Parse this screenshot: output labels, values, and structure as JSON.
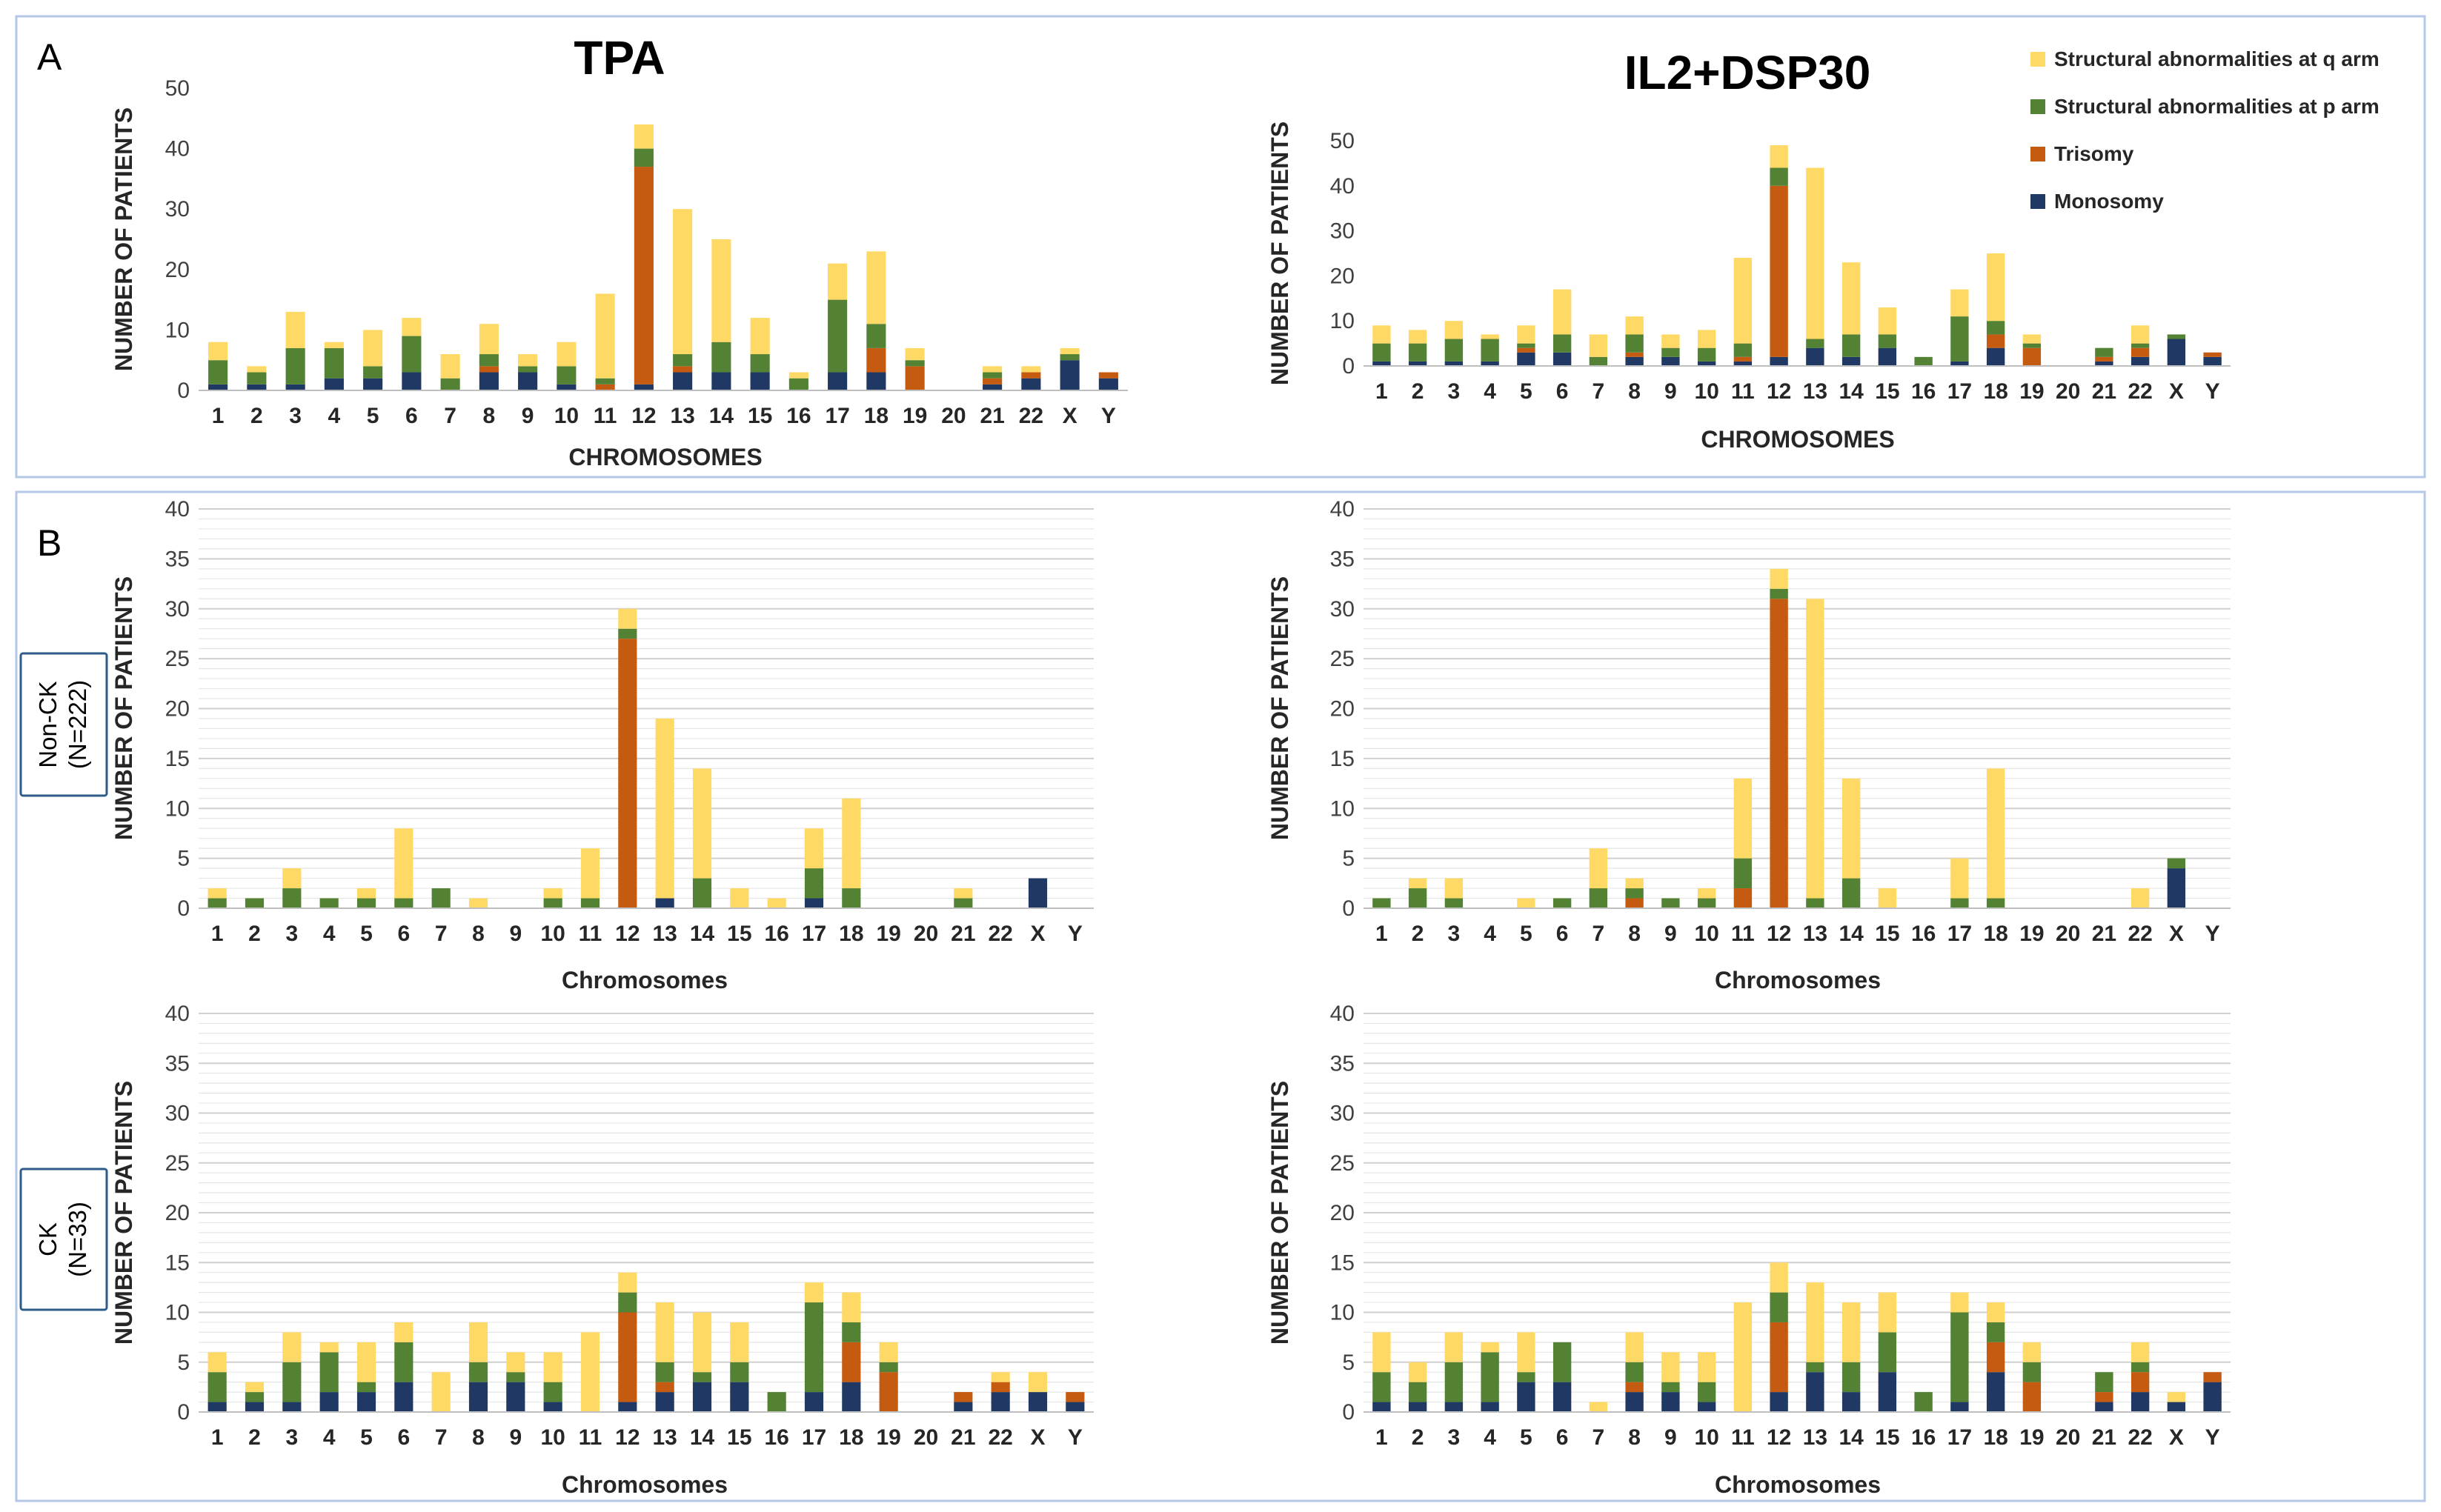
{
  "panels": {
    "a_label": "A",
    "b_label": "B"
  },
  "colors": {
    "monosomy": "#1F3864",
    "trisomy": "#C55A11",
    "p_arm": "#548235",
    "q_arm": "#FFD966",
    "panel_border": "#B4C7E7",
    "row_box_border": "#2E5C8A",
    "gridline": "#D9D9D9",
    "axis": "#BFBFBF"
  },
  "row_labels": {
    "non_ck": [
      "Non-CK",
      "(N=222)"
    ],
    "ck": [
      "CK",
      "(N=33)"
    ]
  },
  "chart_data": [
    {
      "id": "A_TPA",
      "type": "bar",
      "stacked": true,
      "title": "TPA",
      "xlabel": "CHROMOSOMES",
      "ylabel": "NUMBER OF PATIENTS",
      "ylim": [
        0,
        50
      ],
      "ytick_step": 10,
      "grid": false,
      "categories": [
        "1",
        "2",
        "3",
        "4",
        "5",
        "6",
        "7",
        "8",
        "9",
        "10",
        "11",
        "12",
        "13",
        "14",
        "15",
        "16",
        "17",
        "18",
        "19",
        "20",
        "21",
        "22",
        "X",
        "Y"
      ],
      "series": [
        {
          "name": "Monosomy",
          "color_key": "monosomy",
          "values": [
            1,
            1,
            1,
            2,
            2,
            3,
            0,
            3,
            3,
            1,
            0,
            1,
            3,
            3,
            3,
            0,
            3,
            3,
            0,
            0,
            1,
            2,
            5,
            2
          ]
        },
        {
          "name": "Trisomy",
          "color_key": "trisomy",
          "values": [
            0,
            0,
            0,
            0,
            0,
            0,
            0,
            1,
            0,
            0,
            1,
            36,
            1,
            0,
            0,
            0,
            0,
            4,
            4,
            0,
            1,
            1,
            0,
            1
          ]
        },
        {
          "name": "Structural abnormalities at p arm",
          "color_key": "p_arm",
          "values": [
            4,
            2,
            6,
            5,
            2,
            6,
            2,
            2,
            1,
            3,
            1,
            3,
            2,
            5,
            3,
            2,
            12,
            4,
            1,
            0,
            1,
            0,
            1,
            0
          ]
        },
        {
          "name": "Structural abnormalities at q arm",
          "color_key": "q_arm",
          "values": [
            3,
            1,
            6,
            1,
            6,
            3,
            4,
            5,
            2,
            4,
            14,
            4,
            24,
            17,
            6,
            1,
            6,
            12,
            2,
            0,
            1,
            1,
            1,
            0
          ]
        }
      ]
    },
    {
      "id": "A_IL2",
      "type": "bar",
      "stacked": true,
      "title": "IL2+DSP30",
      "xlabel": "CHROMOSOMES",
      "ylabel": "NUMBER OF PATIENTS",
      "ylim": [
        0,
        50
      ],
      "ytick_step": 10,
      "grid": false,
      "legend": "top-right",
      "legend_order": [
        "Structural abnormalities at q arm",
        "Structural abnormalities at p arm",
        "Trisomy",
        "Monosomy"
      ],
      "categories": [
        "1",
        "2",
        "3",
        "4",
        "5",
        "6",
        "7",
        "8",
        "9",
        "10",
        "11",
        "12",
        "13",
        "14",
        "15",
        "16",
        "17",
        "18",
        "19",
        "20",
        "21",
        "22",
        "X",
        "Y"
      ],
      "series": [
        {
          "name": "Monosomy",
          "color_key": "monosomy",
          "values": [
            1,
            1,
            1,
            1,
            3,
            3,
            0,
            2,
            2,
            1,
            1,
            2,
            4,
            2,
            4,
            0,
            1,
            4,
            0,
            0,
            1,
            2,
            6,
            2
          ]
        },
        {
          "name": "Trisomy",
          "color_key": "trisomy",
          "values": [
            0,
            0,
            0,
            0,
            1,
            0,
            0,
            1,
            0,
            0,
            1,
            38,
            0,
            0,
            0,
            0,
            0,
            3,
            4,
            0,
            1,
            2,
            0,
            1
          ]
        },
        {
          "name": "Structural abnormalities at p arm",
          "color_key": "p_arm",
          "values": [
            4,
            4,
            5,
            5,
            1,
            4,
            2,
            4,
            2,
            3,
            3,
            4,
            2,
            5,
            3,
            2,
            10,
            3,
            1,
            0,
            2,
            1,
            1,
            0
          ]
        },
        {
          "name": "Structural abnormalities at q arm",
          "color_key": "q_arm",
          "values": [
            4,
            3,
            4,
            1,
            4,
            10,
            5,
            4,
            3,
            4,
            19,
            5,
            38,
            16,
            6,
            0,
            6,
            15,
            2,
            0,
            0,
            4,
            0,
            0
          ]
        }
      ]
    },
    {
      "id": "B_TPA_NonCK",
      "type": "bar",
      "stacked": true,
      "xlabel": "Chromosomes",
      "ylabel": "NUMBER OF PATIENTS",
      "ylim": [
        0,
        40
      ],
      "ytick_step": 5,
      "grid": true,
      "categories": [
        "1",
        "2",
        "3",
        "4",
        "5",
        "6",
        "7",
        "8",
        "9",
        "10",
        "11",
        "12",
        "13",
        "14",
        "15",
        "16",
        "17",
        "18",
        "19",
        "20",
        "21",
        "22",
        "X",
        "Y"
      ],
      "series": [
        {
          "name": "Monosomy",
          "color_key": "monosomy",
          "values": [
            0,
            0,
            0,
            0,
            0,
            0,
            0,
            0,
            0,
            0,
            0,
            0,
            1,
            0,
            0,
            0,
            1,
            0,
            0,
            0,
            0,
            0,
            3,
            0
          ]
        },
        {
          "name": "Trisomy",
          "color_key": "trisomy",
          "values": [
            0,
            0,
            0,
            0,
            0,
            0,
            0,
            0,
            0,
            0,
            0,
            27,
            0,
            0,
            0,
            0,
            0,
            0,
            0,
            0,
            0,
            0,
            0,
            0
          ]
        },
        {
          "name": "Structural abnormalities at p arm",
          "color_key": "p_arm",
          "values": [
            1,
            1,
            2,
            1,
            1,
            1,
            2,
            0,
            0,
            1,
            1,
            1,
            0,
            3,
            0,
            0,
            3,
            2,
            0,
            0,
            1,
            0,
            0,
            0
          ]
        },
        {
          "name": "Structural abnormalities at q arm",
          "color_key": "q_arm",
          "values": [
            1,
            0,
            2,
            0,
            1,
            7,
            0,
            1,
            0,
            1,
            5,
            2,
            18,
            11,
            2,
            1,
            4,
            9,
            0,
            0,
            1,
            0,
            0,
            0
          ]
        }
      ]
    },
    {
      "id": "B_IL2_NonCK",
      "type": "bar",
      "stacked": true,
      "xlabel": "Chromosomes",
      "ylabel": "NUMBER OF PATIENTS",
      "ylim": [
        0,
        40
      ],
      "ytick_step": 5,
      "grid": true,
      "categories": [
        "1",
        "2",
        "3",
        "4",
        "5",
        "6",
        "7",
        "8",
        "9",
        "10",
        "11",
        "12",
        "13",
        "14",
        "15",
        "16",
        "17",
        "18",
        "19",
        "20",
        "21",
        "22",
        "X",
        "Y"
      ],
      "series": [
        {
          "name": "Monosomy",
          "color_key": "monosomy",
          "values": [
            0,
            0,
            0,
            0,
            0,
            0,
            0,
            0,
            0,
            0,
            0,
            0,
            0,
            0,
            0,
            0,
            0,
            0,
            0,
            0,
            0,
            0,
            4,
            0
          ]
        },
        {
          "name": "Trisomy",
          "color_key": "trisomy",
          "values": [
            0,
            0,
            0,
            0,
            0,
            0,
            0,
            1,
            0,
            0,
            2,
            31,
            0,
            0,
            0,
            0,
            0,
            0,
            0,
            0,
            0,
            0,
            0,
            0
          ]
        },
        {
          "name": "Structural abnormalities at p arm",
          "color_key": "p_arm",
          "values": [
            1,
            2,
            1,
            0,
            0,
            1,
            2,
            1,
            1,
            1,
            3,
            1,
            1,
            3,
            0,
            0,
            1,
            1,
            0,
            0,
            0,
            0,
            1,
            0
          ]
        },
        {
          "name": "Structural abnormalities at q arm",
          "color_key": "q_arm",
          "values": [
            0,
            1,
            2,
            0,
            1,
            0,
            4,
            1,
            0,
            1,
            8,
            2,
            30,
            10,
            2,
            0,
            4,
            13,
            0,
            0,
            0,
            2,
            0,
            0
          ]
        }
      ]
    },
    {
      "id": "B_TPA_CK",
      "type": "bar",
      "stacked": true,
      "xlabel": "Chromosomes",
      "ylabel": "NUMBER OF PATIENTS",
      "ylim": [
        0,
        40
      ],
      "ytick_step": 5,
      "grid": true,
      "categories": [
        "1",
        "2",
        "3",
        "4",
        "5",
        "6",
        "7",
        "8",
        "9",
        "10",
        "11",
        "12",
        "13",
        "14",
        "15",
        "16",
        "17",
        "18",
        "19",
        "20",
        "21",
        "22",
        "X",
        "Y"
      ],
      "series": [
        {
          "name": "Monosomy",
          "color_key": "monosomy",
          "values": [
            1,
            1,
            1,
            2,
            2,
            3,
            0,
            3,
            3,
            1,
            0,
            1,
            2,
            3,
            3,
            0,
            2,
            3,
            0,
            0,
            1,
            2,
            2,
            1
          ]
        },
        {
          "name": "Trisomy",
          "color_key": "trisomy",
          "values": [
            0,
            0,
            0,
            0,
            0,
            0,
            0,
            0,
            0,
            0,
            0,
            9,
            1,
            0,
            0,
            0,
            0,
            4,
            4,
            0,
            1,
            1,
            0,
            1
          ]
        },
        {
          "name": "Structural abnormalities at p arm",
          "color_key": "p_arm",
          "values": [
            3,
            1,
            4,
            4,
            1,
            4,
            0,
            2,
            1,
            2,
            0,
            2,
            2,
            1,
            2,
            2,
            9,
            2,
            1,
            0,
            0,
            0,
            0,
            0
          ]
        },
        {
          "name": "Structural abnormalities at q arm",
          "color_key": "q_arm",
          "values": [
            2,
            1,
            3,
            1,
            4,
            2,
            4,
            4,
            2,
            3,
            8,
            2,
            6,
            6,
            4,
            0,
            2,
            3,
            2,
            0,
            0,
            1,
            2,
            0
          ]
        }
      ]
    },
    {
      "id": "B_IL2_CK",
      "type": "bar",
      "stacked": true,
      "xlabel": "Chromosomes",
      "ylabel": "NUMBER OF PATIENTS",
      "ylim": [
        0,
        40
      ],
      "ytick_step": 5,
      "grid": true,
      "categories": [
        "1",
        "2",
        "3",
        "4",
        "5",
        "6",
        "7",
        "8",
        "9",
        "10",
        "11",
        "12",
        "13",
        "14",
        "15",
        "16",
        "17",
        "18",
        "19",
        "20",
        "21",
        "22",
        "X",
        "Y"
      ],
      "series": [
        {
          "name": "Monosomy",
          "color_key": "monosomy",
          "values": [
            1,
            1,
            1,
            1,
            3,
            3,
            0,
            2,
            2,
            1,
            0,
            2,
            4,
            2,
            4,
            0,
            1,
            4,
            0,
            0,
            1,
            2,
            1,
            3
          ]
        },
        {
          "name": "Trisomy",
          "color_key": "trisomy",
          "values": [
            0,
            0,
            0,
            0,
            0,
            0,
            0,
            1,
            0,
            0,
            0,
            7,
            0,
            0,
            0,
            0,
            0,
            3,
            3,
            0,
            1,
            2,
            0,
            1
          ]
        },
        {
          "name": "Structural abnormalities at p arm",
          "color_key": "p_arm",
          "values": [
            3,
            2,
            4,
            5,
            1,
            4,
            0,
            2,
            1,
            2,
            0,
            3,
            1,
            3,
            4,
            2,
            9,
            2,
            2,
            0,
            2,
            1,
            0,
            0
          ]
        },
        {
          "name": "Structural abnormalities at q arm",
          "color_key": "q_arm",
          "values": [
            4,
            2,
            3,
            1,
            4,
            0,
            1,
            3,
            3,
            3,
            11,
            3,
            8,
            6,
            4,
            0,
            2,
            2,
            2,
            0,
            0,
            2,
            1,
            0
          ]
        }
      ]
    }
  ]
}
